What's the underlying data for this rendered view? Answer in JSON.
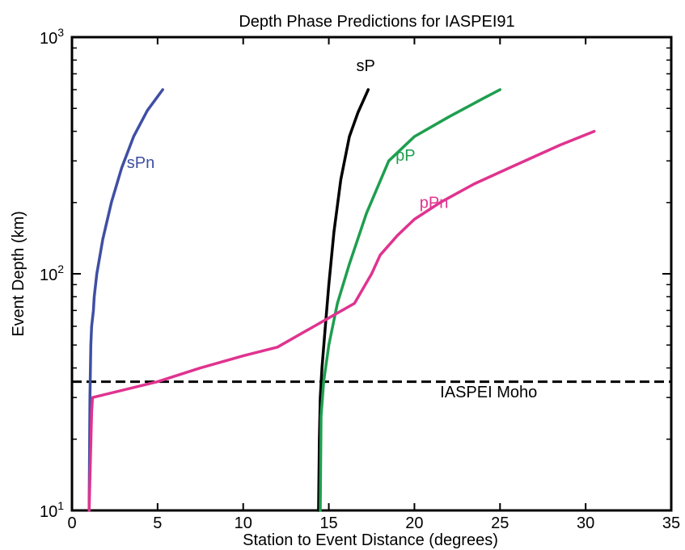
{
  "chart_data": {
    "type": "line",
    "title": "Depth Phase Predictions for IASPEI91",
    "xlabel": "Station to Event Distance (degrees)",
    "ylabel": "Event Depth (km)",
    "xlim": [
      0,
      35
    ],
    "ylim": [
      10,
      1000
    ],
    "yscale": "log",
    "grid": false,
    "x_ticks": [
      0,
      5,
      10,
      15,
      20,
      25,
      30,
      35
    ],
    "x_tick_labels": [
      "0",
      "5",
      "10",
      "15",
      "20",
      "25",
      "30",
      "35"
    ],
    "y_major_ticks": [
      {
        "value": 10,
        "base": "10",
        "exp": "1"
      },
      {
        "value": 100,
        "base": "10",
        "exp": "2"
      },
      {
        "value": 1000,
        "base": "10",
        "exp": "3"
      }
    ],
    "series": [
      {
        "name": "sPn",
        "color": "#3F4FA3",
        "x": [
          1.0,
          1.05,
          1.1,
          1.15,
          1.25,
          1.3,
          1.45,
          1.8,
          2.3,
          2.9,
          3.6,
          4.4,
          5.3
        ],
        "y": [
          10,
          30,
          50,
          60,
          70,
          80,
          100,
          140,
          200,
          280,
          380,
          490,
          600
        ]
      },
      {
        "name": "sP",
        "color": "#000000",
        "x": [
          14.4,
          14.45,
          14.5,
          14.6,
          14.8,
          15.0,
          15.3,
          15.7,
          16.2,
          16.7,
          17.3
        ],
        "y": [
          10,
          20,
          30,
          40,
          60,
          90,
          150,
          250,
          380,
          480,
          600
        ]
      },
      {
        "name": "pP",
        "color": "#1E9E4F",
        "x": [
          14.5,
          14.55,
          14.7,
          15.0,
          15.5,
          16.2,
          17.2,
          18.5,
          20.0,
          22.0,
          24.0,
          25.0
        ],
        "y": [
          10,
          25,
          35,
          50,
          75,
          110,
          180,
          300,
          380,
          460,
          550,
          600
        ]
      },
      {
        "name": "pPn",
        "color": "#E0338F",
        "x": [
          1.0,
          1.15,
          1.2,
          5.0,
          7.5,
          10.0,
          12.0,
          16.5,
          17.5,
          18.0,
          19.0,
          20.0,
          21.5,
          23.5,
          26.0,
          28.5,
          30.5
        ],
        "y": [
          10,
          26,
          30,
          35,
          40,
          45,
          49,
          75,
          100,
          120,
          145,
          170,
          200,
          240,
          290,
          350,
          400
        ]
      }
    ],
    "annotations": [
      {
        "text": "sPn",
        "x": 3.2,
        "y": 280,
        "color": "#3F4FA3"
      },
      {
        "text": "sP",
        "x": 16.6,
        "y": 720,
        "color": "#000000"
      },
      {
        "text": "pP",
        "x": 18.9,
        "y": 300,
        "color": "#1E9E4F"
      },
      {
        "text": "pPn",
        "x": 20.3,
        "y": 190,
        "color": "#E0338F"
      },
      {
        "text": "IASPEI Moho",
        "x": 21.5,
        "y": 30,
        "color": "#000000"
      }
    ],
    "reference_lines": [
      {
        "name": "IASPEI Moho",
        "orientation": "horizontal",
        "y": 35,
        "style": "dashed",
        "color": "#000000"
      }
    ]
  }
}
